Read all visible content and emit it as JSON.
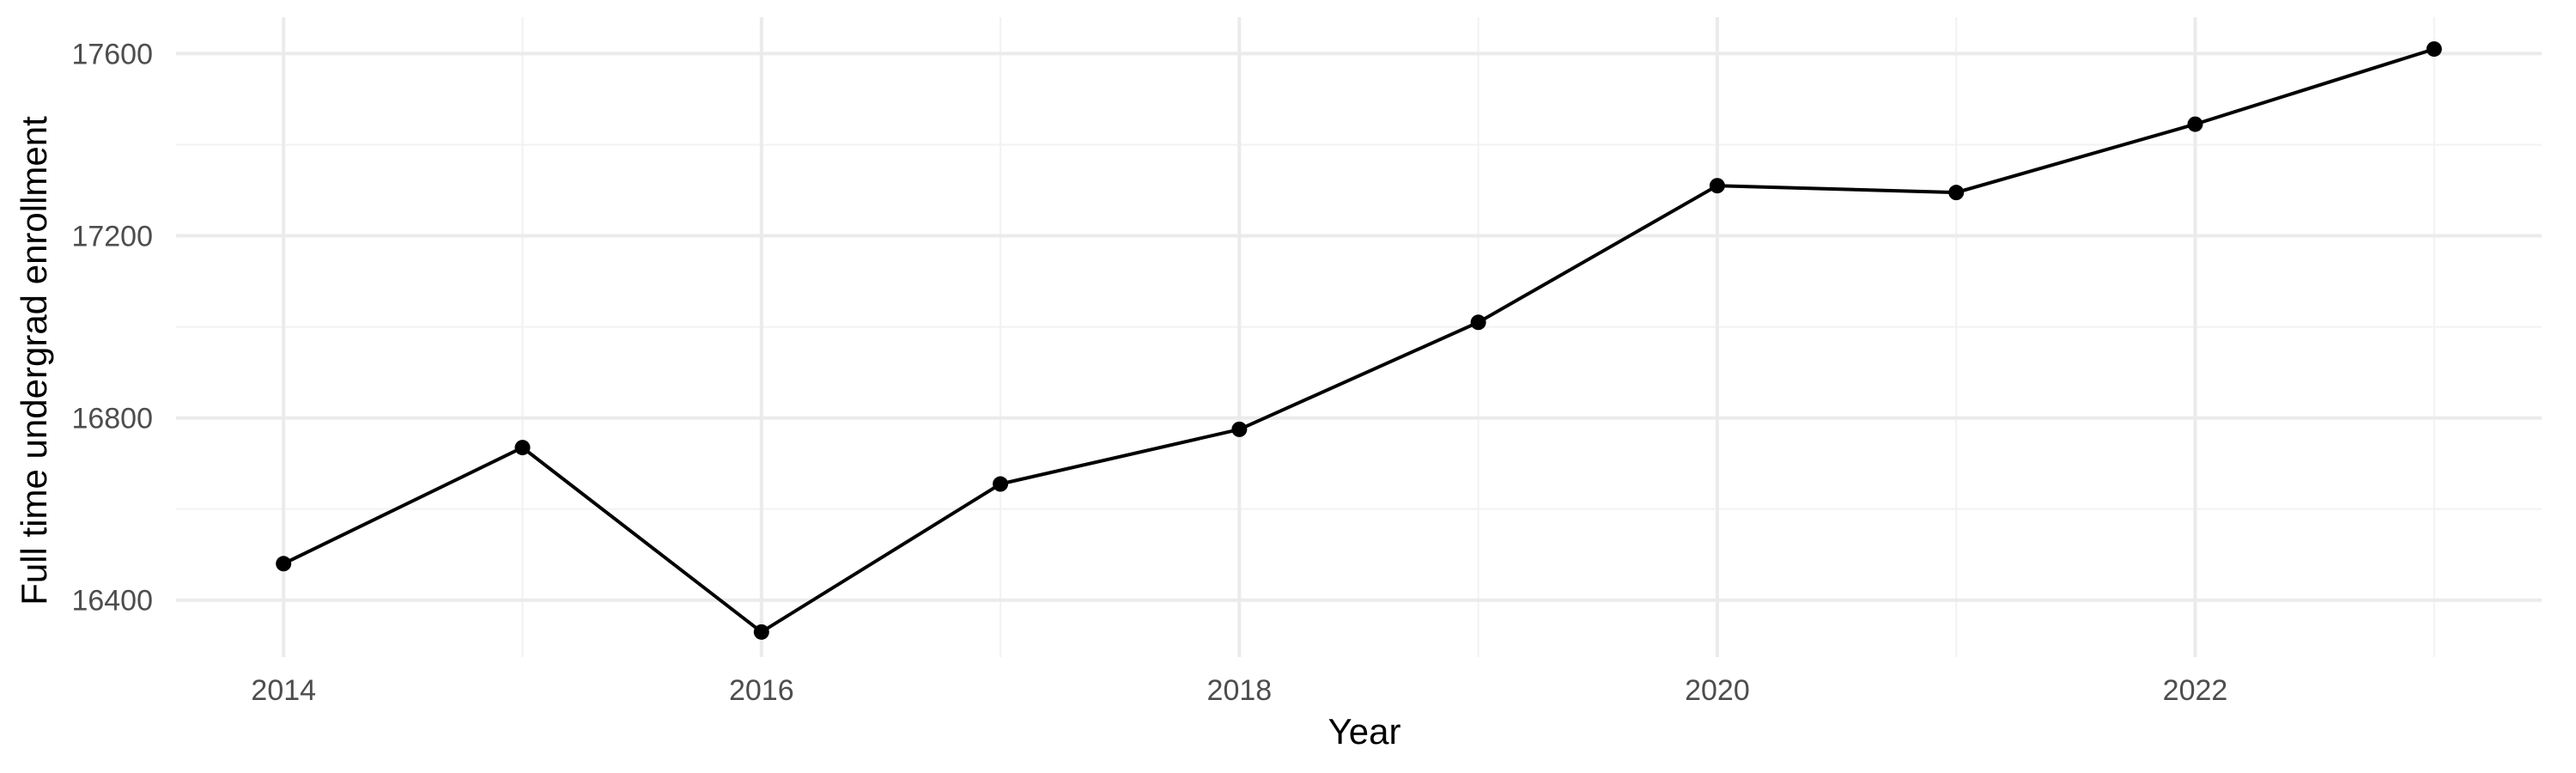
{
  "chart_data": {
    "type": "line",
    "title": "",
    "xlabel": "Year",
    "ylabel": "Full time undergrad enrollment",
    "x": [
      2014,
      2015,
      2016,
      2017,
      2018,
      2019,
      2020,
      2021,
      2022,
      2023
    ],
    "series": [
      {
        "values": [
          16480,
          16735,
          16330,
          16655,
          16775,
          17010,
          17310,
          17295,
          17445,
          17610
        ]
      }
    ],
    "xlim": [
      2013.55,
      2023.45
    ],
    "ylim": [
      16275,
      17680
    ],
    "x_ticks": [
      2014,
      2016,
      2018,
      2020,
      2022
    ],
    "x_tick_labels": [
      "2014",
      "2016",
      "2018",
      "2020",
      "2022"
    ],
    "y_ticks": [
      16400,
      16800,
      17200,
      17600
    ],
    "y_tick_labels": [
      "16400",
      "16800",
      "17200",
      "17600"
    ],
    "grid": true,
    "legend": "none",
    "colors": {
      "line": "#000000",
      "points": "#000000",
      "grid_major": "#ebebeb",
      "grid_minor": "#f2f2f2",
      "tick_text": "#4d4d4d",
      "axis_text": "#000000"
    }
  }
}
